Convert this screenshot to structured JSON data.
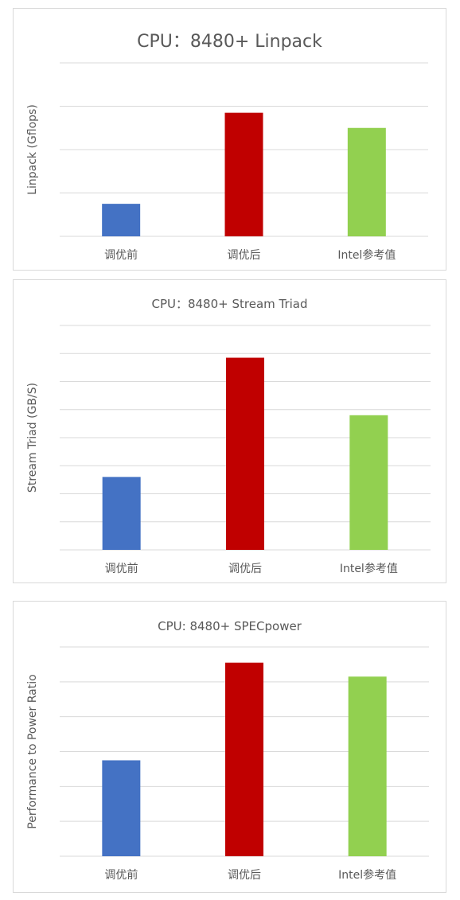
{
  "chart_data": [
    {
      "type": "bar",
      "title": "CPU：8480+ Linpack",
      "ylabel": "Linpack (Gflops)",
      "xlabel": "",
      "categories": [
        "调优前",
        "调优后",
        "Intel参考值"
      ],
      "values": [
        0.75,
        2.85,
        2.5
      ],
      "ylim": [
        0,
        4
      ],
      "grid": true,
      "colors": [
        "#4472C4",
        "#C00000",
        "#92D050"
      ]
    },
    {
      "type": "bar",
      "title": "CPU：8480+  Stream Triad",
      "ylabel": "Stream Triad (GB/S)",
      "xlabel": "",
      "categories": [
        "调优前",
        "调优后",
        "Intel参考值"
      ],
      "values": [
        2.6,
        6.85,
        4.8
      ],
      "ylim": [
        0,
        8
      ],
      "grid": true,
      "colors": [
        "#4472C4",
        "#C00000",
        "#92D050"
      ]
    },
    {
      "type": "bar",
      "title": "CPU: 8480+ SPECpower",
      "ylabel": "Performance to Power Ratio",
      "xlabel": "",
      "categories": [
        "调优前",
        "调优后",
        "Intel参考值"
      ],
      "values": [
        2.75,
        5.55,
        5.15
      ],
      "ylim": [
        0,
        6
      ],
      "grid": true,
      "colors": [
        "#4472C4",
        "#C00000",
        "#92D050"
      ]
    }
  ]
}
